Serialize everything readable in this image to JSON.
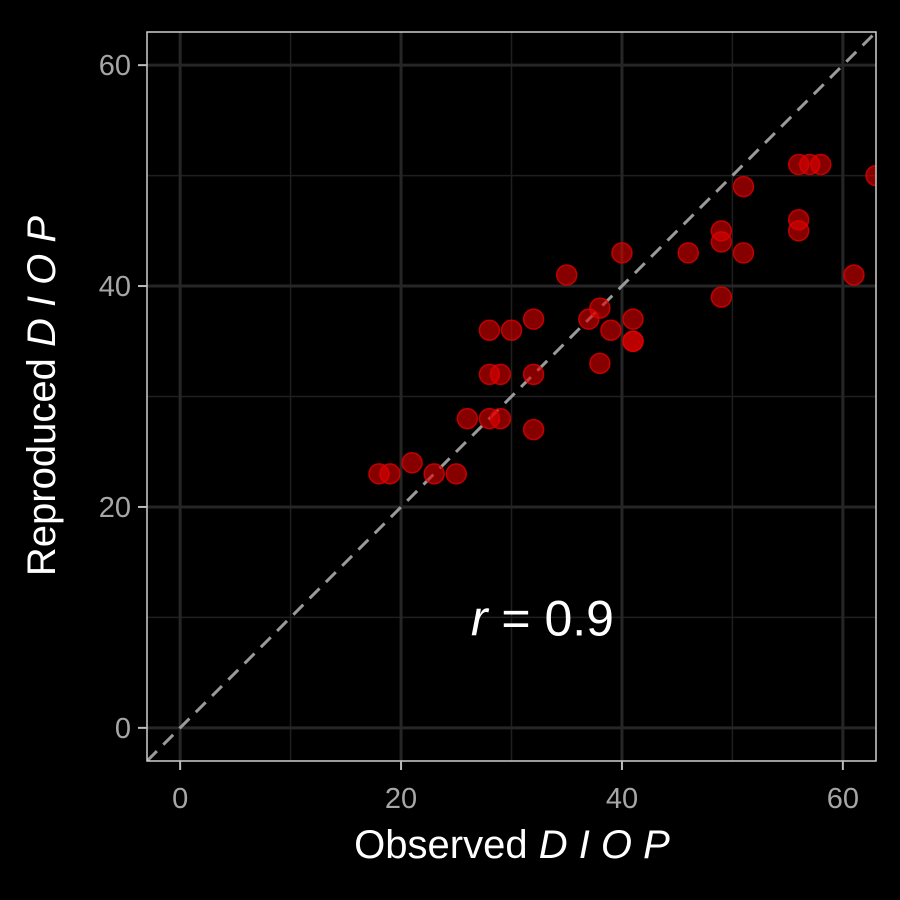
{
  "chart_data": {
    "type": "scatter",
    "xlabel": {
      "text": "Observed",
      "italic": "D I O P"
    },
    "ylabel": {
      "text": "Reproduced",
      "italic": "D I O P"
    },
    "xlim": [
      -3,
      63
    ],
    "ylim": [
      -3,
      63
    ],
    "major_ticks": [
      0,
      20,
      40,
      60
    ],
    "minor_ticks": [
      10,
      30,
      50
    ],
    "tick_labels": {
      "x": [
        "0",
        "20",
        "40",
        "60"
      ],
      "y": [
        "0",
        "20",
        "40",
        "60"
      ]
    },
    "grid": true,
    "reference_line": {
      "style": "dashed",
      "from": [
        -3,
        -3
      ],
      "to": [
        63,
        63
      ]
    },
    "annotation": {
      "var": "r",
      "rest": " = 0.9",
      "x": 37,
      "y": 10
    },
    "point_color": "#e00000",
    "background": "#000000",
    "points": [
      {
        "x": 18,
        "y": 23
      },
      {
        "x": 19,
        "y": 23
      },
      {
        "x": 21,
        "y": 24
      },
      {
        "x": 23,
        "y": 23
      },
      {
        "x": 25,
        "y": 23
      },
      {
        "x": 26,
        "y": 28
      },
      {
        "x": 28,
        "y": 28
      },
      {
        "x": 29,
        "y": 28
      },
      {
        "x": 28,
        "y": 32
      },
      {
        "x": 29,
        "y": 32
      },
      {
        "x": 28,
        "y": 36
      },
      {
        "x": 30,
        "y": 36
      },
      {
        "x": 32,
        "y": 27
      },
      {
        "x": 32,
        "y": 32
      },
      {
        "x": 32,
        "y": 37
      },
      {
        "x": 35,
        "y": 41
      },
      {
        "x": 37,
        "y": 37
      },
      {
        "x": 38,
        "y": 38
      },
      {
        "x": 38,
        "y": 33
      },
      {
        "x": 39,
        "y": 36
      },
      {
        "x": 40,
        "y": 43
      },
      {
        "x": 41,
        "y": 37
      },
      {
        "x": 41,
        "y": 35
      },
      {
        "x": 41,
        "y": 35
      },
      {
        "x": 46,
        "y": 43
      },
      {
        "x": 49,
        "y": 45
      },
      {
        "x": 49,
        "y": 44
      },
      {
        "x": 49,
        "y": 39
      },
      {
        "x": 51,
        "y": 49
      },
      {
        "x": 51,
        "y": 43
      },
      {
        "x": 56,
        "y": 51
      },
      {
        "x": 57,
        "y": 51
      },
      {
        "x": 58,
        "y": 51
      },
      {
        "x": 56,
        "y": 46
      },
      {
        "x": 56,
        "y": 45
      },
      {
        "x": 61,
        "y": 41
      },
      {
        "x": 63,
        "y": 50
      }
    ]
  }
}
